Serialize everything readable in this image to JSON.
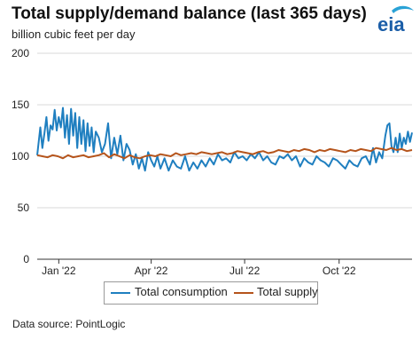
{
  "header": {
    "title": "Total supply/demand balance (last 365 days)",
    "subtitle": "billion cubic feet per day",
    "logo_text": "eia"
  },
  "footer": {
    "source": "Data source: PointLogic"
  },
  "colors": {
    "consumption": "#1f7fc0",
    "supply": "#b5541b",
    "grid": "#d9d9d9",
    "logo": "#1b5ea8",
    "logo_swoosh": "#2aa2d6"
  },
  "chart_data": {
    "type": "line",
    "title": "Total supply/demand balance (last 365 days)",
    "ylabel": "billion cubic feet per day",
    "ylim": [
      0,
      200
    ],
    "yticks": [
      0,
      50,
      100,
      150,
      200
    ],
    "xlim": [
      0,
      365
    ],
    "xticks": [
      {
        "label": "Jan '22",
        "x": 21
      },
      {
        "label": "Apr '22",
        "x": 111
      },
      {
        "label": "Jul '22",
        "x": 202
      },
      {
        "label": "Oct '22",
        "x": 294
      }
    ],
    "legend": [
      "Total consumption",
      "Total supply"
    ],
    "legend_position": "bottom",
    "grid": "horizontal",
    "series": [
      {
        "name": "Total consumption",
        "color": "#1f7fc0",
        "x": [
          0,
          3,
          5,
          7,
          9,
          11,
          13,
          15,
          17,
          19,
          21,
          23,
          25,
          27,
          29,
          31,
          33,
          35,
          37,
          39,
          41,
          43,
          45,
          47,
          49,
          51,
          53,
          55,
          57,
          60,
          63,
          66,
          69,
          72,
          75,
          78,
          81,
          84,
          87,
          90,
          93,
          96,
          99,
          102,
          105,
          108,
          111,
          114,
          117,
          120,
          124,
          128,
          132,
          136,
          140,
          144,
          148,
          152,
          156,
          160,
          164,
          168,
          172,
          176,
          180,
          184,
          188,
          192,
          196,
          200,
          204,
          208,
          212,
          216,
          220,
          224,
          228,
          232,
          236,
          240,
          244,
          248,
          252,
          256,
          260,
          264,
          268,
          272,
          276,
          280,
          284,
          288,
          292,
          296,
          300,
          304,
          308,
          312,
          316,
          320,
          324,
          327,
          330,
          333,
          336,
          339,
          341,
          343,
          345,
          347,
          349,
          351,
          353,
          355,
          357,
          359,
          361,
          363,
          365
        ],
        "y": [
          101,
          128,
          108,
          122,
          138,
          115,
          130,
          126,
          145,
          125,
          138,
          128,
          147,
          118,
          140,
          112,
          146,
          120,
          142,
          108,
          138,
          112,
          135,
          105,
          132,
          110,
          128,
          104,
          124,
          118,
          104,
          112,
          132,
          98,
          118,
          102,
          120,
          96,
          112,
          106,
          92,
          102,
          88,
          98,
          86,
          104,
          96,
          90,
          100,
          88,
          98,
          86,
          96,
          90,
          88,
          100,
          86,
          94,
          88,
          96,
          90,
          98,
          92,
          102,
          96,
          98,
          94,
          104,
          98,
          100,
          96,
          102,
          98,
          104,
          96,
          100,
          94,
          92,
          100,
          98,
          102,
          96,
          100,
          90,
          98,
          94,
          92,
          100,
          96,
          94,
          90,
          98,
          96,
          92,
          88,
          96,
          92,
          90,
          98,
          100,
          92,
          108,
          94,
          104,
          98,
          120,
          130,
          132,
          110,
          104,
          118,
          104,
          122,
          108,
          118,
          112,
          124,
          114,
          123
        ]
      },
      {
        "name": "Total supply",
        "color": "#b5541b",
        "x": [
          0,
          5,
          10,
          15,
          20,
          25,
          30,
          35,
          40,
          45,
          50,
          55,
          60,
          65,
          70,
          75,
          80,
          85,
          90,
          95,
          100,
          105,
          110,
          115,
          120,
          125,
          130,
          135,
          140,
          145,
          150,
          155,
          160,
          165,
          170,
          175,
          180,
          185,
          190,
          195,
          200,
          205,
          210,
          215,
          220,
          225,
          230,
          235,
          240,
          245,
          250,
          255,
          260,
          265,
          270,
          275,
          280,
          285,
          290,
          295,
          300,
          305,
          310,
          315,
          320,
          325,
          330,
          335,
          340,
          345,
          350,
          355,
          360,
          365
        ],
        "y": [
          101,
          100,
          99,
          101,
          100,
          98,
          101,
          99,
          100,
          101,
          99,
          100,
          101,
          103,
          99,
          102,
          100,
          98,
          101,
          99,
          98,
          100,
          101,
          100,
          102,
          101,
          100,
          103,
          101,
          102,
          103,
          102,
          104,
          103,
          102,
          103,
          104,
          102,
          103,
          105,
          104,
          103,
          102,
          104,
          105,
          103,
          104,
          106,
          105,
          104,
          106,
          105,
          107,
          106,
          104,
          106,
          105,
          107,
          106,
          105,
          104,
          106,
          105,
          107,
          106,
          105,
          108,
          107,
          106,
          108,
          106,
          107,
          105,
          106
        ]
      }
    ]
  }
}
